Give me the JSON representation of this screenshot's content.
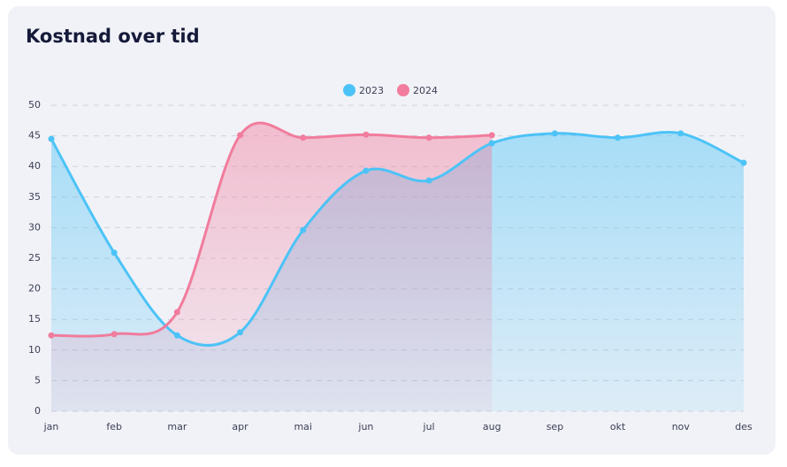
{
  "chart_data": {
    "type": "line",
    "title": "Kostnad over tid",
    "categories": [
      "jan",
      "feb",
      "mar",
      "apr",
      "mai",
      "jun",
      "jul",
      "aug",
      "sep",
      "okt",
      "nov",
      "des"
    ],
    "series": [
      {
        "name": "2023",
        "color": "#4cc3f7",
        "values": [
          44.5,
          25.9,
          12.4,
          12.9,
          29.6,
          39.3,
          37.7,
          43.8,
          45.4,
          44.7,
          45.4,
          40.6
        ]
      },
      {
        "name": "2024",
        "color": "#f17c9d",
        "values": [
          12.4,
          12.6,
          16.2,
          45.1,
          44.7,
          45.2,
          44.7,
          45.1,
          null,
          null,
          null,
          null
        ]
      }
    ],
    "ylim": [
      0,
      50
    ],
    "yticks": [
      0,
      5,
      10,
      15,
      20,
      25,
      30,
      35,
      40,
      45,
      50
    ],
    "grid": true,
    "legend": "top"
  }
}
